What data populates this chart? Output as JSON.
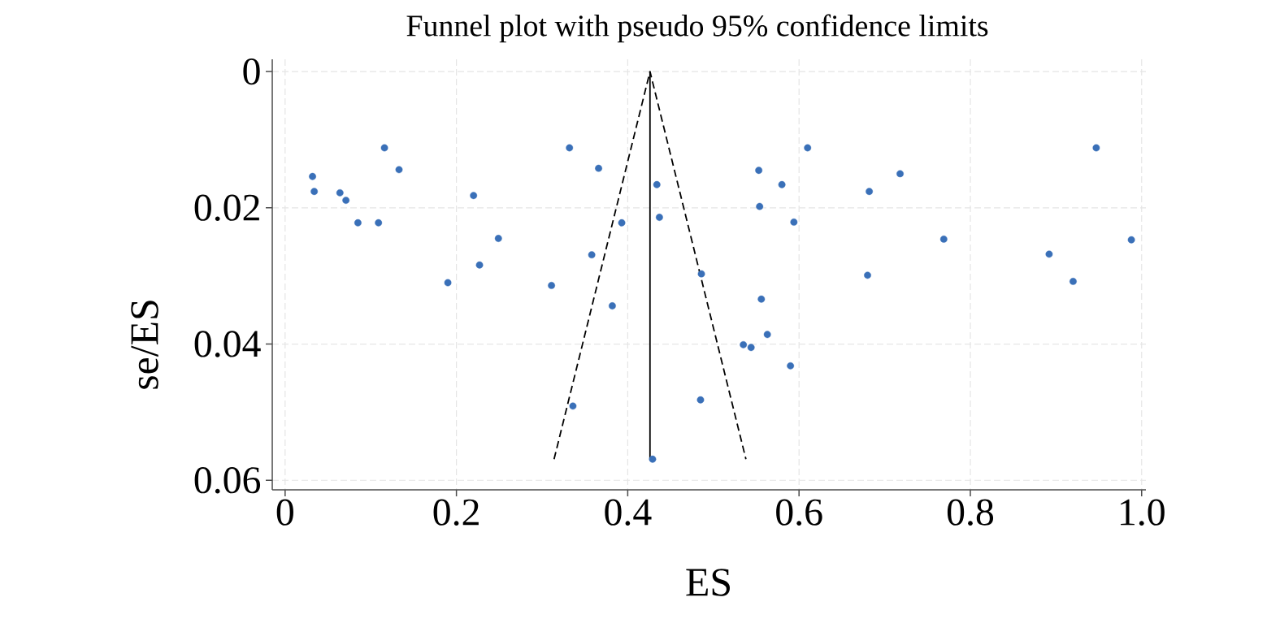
{
  "chart_data": {
    "type": "scatter",
    "title": "Funnel plot with pseudo 95% confidence limits",
    "xlabel": "ES",
    "ylabel": "se/ES",
    "xlim": [
      -0.015,
      1.005
    ],
    "ylim": [
      0.0614,
      -0.0018
    ],
    "xticks": [
      0,
      0.2,
      0.4,
      0.6,
      0.8,
      {
        "value": 1,
        "label": "1.0"
      }
    ],
    "yticks": [
      0,
      0.02,
      0.04,
      0.06
    ],
    "grid": true,
    "marker": "circle",
    "series": [
      {
        "color": "#3a70b8",
        "x": [
          0.032,
          0.034,
          0.064,
          0.071,
          0.085,
          0.109,
          0.116,
          0.133,
          0.19,
          0.22,
          0.227,
          0.249,
          0.311,
          0.332,
          0.336,
          0.358,
          0.366,
          0.382,
          0.393,
          0.429,
          0.434,
          0.437,
          0.486,
          0.485,
          0.553,
          0.554,
          0.556,
          0.535,
          0.544,
          0.563,
          0.58,
          0.59,
          0.594,
          0.61,
          0.682,
          0.68,
          0.718,
          0.769,
          0.892,
          0.92,
          0.947,
          0.988
        ],
        "values": [
          0.0154,
          0.0176,
          0.0178,
          0.0189,
          0.0222,
          0.0222,
          0.0112,
          0.0144,
          0.031,
          0.0182,
          0.0284,
          0.0245,
          0.0314,
          0.0112,
          0.0491,
          0.0269,
          0.0142,
          0.0344,
          0.0222,
          0.0569,
          0.0166,
          0.0214,
          0.0297,
          0.0482,
          0.0145,
          0.0198,
          0.0334,
          0.0401,
          0.0405,
          0.0386,
          0.0166,
          0.0432,
          0.0221,
          0.0112,
          0.0176,
          0.0299,
          0.015,
          0.0246,
          0.0268,
          0.0308,
          0.0112,
          0.0247
        ]
      },
      {
        "type": "line",
        "color": "#000000",
        "line_style": "dashed",
        "marker": "none",
        "x": [
          0.314,
          0.426,
          0.538
        ],
        "values": [
          0.0569,
          0,
          0.0569
        ]
      },
      {
        "type": "line",
        "color": "#000000",
        "line_style": "solid",
        "marker": "none",
        "x": [
          0.426,
          0.426
        ],
        "values": [
          0,
          0.0569
        ]
      }
    ]
  }
}
